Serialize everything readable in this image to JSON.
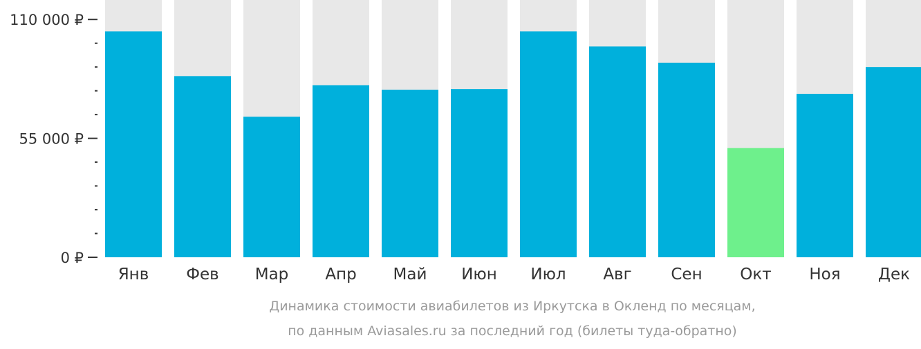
{
  "chart_data": {
    "type": "bar",
    "categories": [
      "Янв",
      "Фев",
      "Мар",
      "Апр",
      "Май",
      "Июн",
      "Июл",
      "Авг",
      "Сен",
      "Окт",
      "Ноя",
      "Дек"
    ],
    "series": [
      {
        "values": [
          104500,
          83800,
          65000,
          79600,
          77500,
          77800,
          104500,
          97500,
          90000,
          50500,
          75600,
          88000
        ]
      }
    ],
    "ylim": [
      0,
      119000
    ],
    "yticks": [
      {
        "value": 110000,
        "label": "110 000 ₽"
      },
      {
        "value": 55000,
        "label": "55 000 ₽"
      },
      {
        "value": 0,
        "label": "0 ₽"
      }
    ],
    "minor_tick_step": 11000,
    "highlight_index": 9,
    "grid": false,
    "legend": "none",
    "caption": [
      "Динамика стоимости авиабилетов из Иркутска в Окленд по месяцам,",
      "по данным Aviasales.ru за последний год (билеты туда-обратно)"
    ],
    "colors": {
      "bar": "#00b0dc",
      "bar_highlight": "#6ef08c",
      "bar_background": "#e8e8e8",
      "axis": "#333333",
      "caption": "#9a9a9a"
    }
  }
}
